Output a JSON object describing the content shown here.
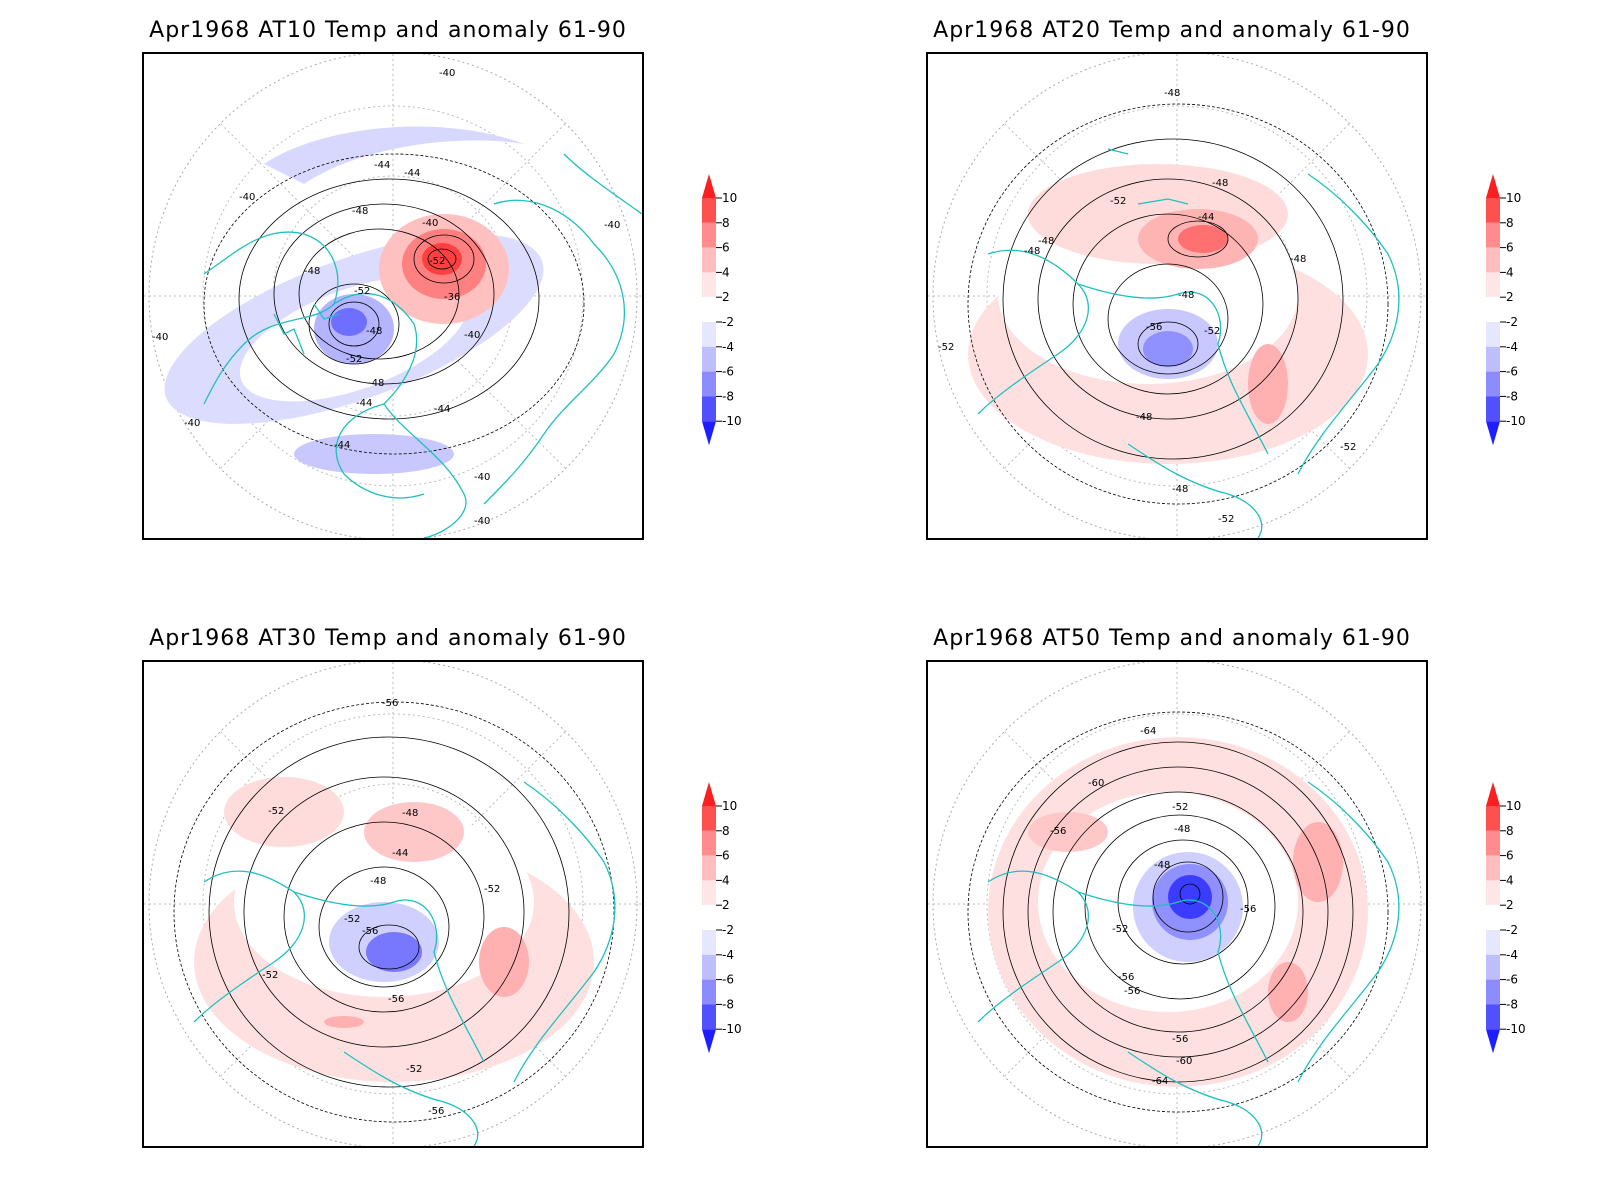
{
  "panels": [
    {
      "title": "Apr1968 AT10 Temp and anomaly 61-90",
      "contour_labels": [
        "-40",
        "-40",
        "-44",
        "-44",
        "-48",
        "-48",
        "-40",
        "-52",
        "-52",
        "-48",
        "-52",
        "-48",
        "-40",
        "-36",
        "-44",
        "-44",
        "-44",
        "-40",
        "-40",
        "-40",
        "-40",
        "-40"
      ]
    },
    {
      "title": "Apr1968 AT20 Temp and anomaly 61-90",
      "contour_labels": [
        "-48",
        "-52",
        "-48",
        "-48",
        "-44",
        "-48",
        "-48",
        "-56",
        "-52",
        "-48",
        "-48",
        "-48",
        "-52",
        "-52",
        "-52"
      ]
    },
    {
      "title": "Apr1968 AT30 Temp and anomaly 61-90",
      "contour_labels": [
        "-56",
        "-52",
        "-48",
        "-44",
        "-48",
        "-52",
        "-52",
        "-56",
        "-52",
        "-56",
        "-52",
        "-56"
      ]
    },
    {
      "title": "Apr1968 AT50 Temp and anomaly 61-90",
      "contour_labels": [
        "-64",
        "-60",
        "-56",
        "-52",
        "-48",
        "-48",
        "-56",
        "-52",
        "-56",
        "-56",
        "-56",
        "-60",
        "-64"
      ]
    }
  ],
  "colorbar": {
    "labels": [
      "10",
      "8",
      "6",
      "4",
      "2",
      "-2",
      "-4",
      "-6",
      "-8",
      "-10"
    ],
    "colors": [
      "#ff1e1e",
      "#ff5050",
      "#ff8c8c",
      "#ffbebe",
      "#ffe6e6",
      "#ffffff",
      "#e6e6ff",
      "#bebeff",
      "#8c8cff",
      "#5050ff",
      "#1e1eff"
    ]
  }
}
